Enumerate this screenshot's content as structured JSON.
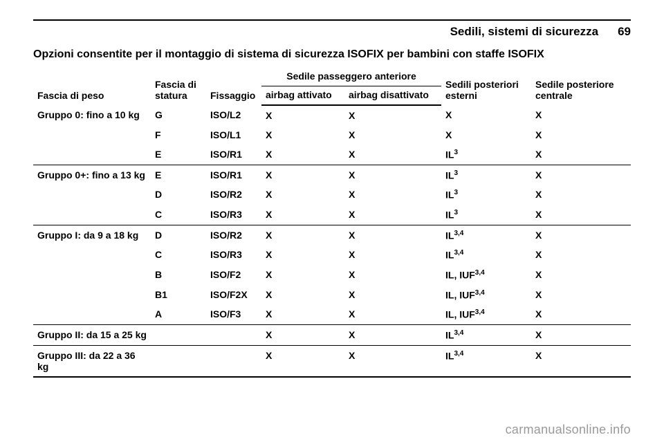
{
  "running_head": {
    "section": "Sedili, sistemi di sicurezza",
    "page": "69"
  },
  "title": "Opzioni consentite per il montaggio di sistema di sicurezza ISOFIX per bambini con staffe ISOFIX",
  "head": {
    "weight": "Fascia di peso",
    "size": "Fascia di statura",
    "fix": "Fissaggio",
    "front_span": "Sedile passeggero anteriore",
    "airbag_on": "airbag attivato",
    "airbag_off": "airbag disattivato",
    "rear_outer": "Sedili posteriori esterni",
    "rear_center": "Sedile posteriore centrale"
  },
  "groups": [
    {
      "label": "Gruppo 0: fino a 10 kg",
      "rows": [
        {
          "size": "G",
          "fix": "ISO/L2",
          "ab_on": "X",
          "ab_off": "X",
          "rear": "X",
          "rear_sup": "",
          "center": "X"
        },
        {
          "size": "F",
          "fix": "ISO/L1",
          "ab_on": "X",
          "ab_off": "X",
          "rear": "X",
          "rear_sup": "",
          "center": "X"
        },
        {
          "size": "E",
          "fix": "ISO/R1",
          "ab_on": "X",
          "ab_off": "X",
          "rear": "IL",
          "rear_sup": "3",
          "center": "X"
        }
      ]
    },
    {
      "label": "Gruppo 0+: fino a 13 kg",
      "rows": [
        {
          "size": "E",
          "fix": "ISO/R1",
          "ab_on": "X",
          "ab_off": "X",
          "rear": "IL",
          "rear_sup": "3",
          "center": "X"
        },
        {
          "size": "D",
          "fix": "ISO/R2",
          "ab_on": "X",
          "ab_off": "X",
          "rear": "IL",
          "rear_sup": "3",
          "center": "X"
        },
        {
          "size": "C",
          "fix": "ISO/R3",
          "ab_on": "X",
          "ab_off": "X",
          "rear": "IL",
          "rear_sup": "3",
          "center": "X"
        }
      ]
    },
    {
      "label": "Gruppo I: da 9 a 18 kg",
      "rows": [
        {
          "size": "D",
          "fix": "ISO/R2",
          "ab_on": "X",
          "ab_off": "X",
          "rear": "IL",
          "rear_sup": "3,4",
          "center": "X"
        },
        {
          "size": "C",
          "fix": "ISO/R3",
          "ab_on": "X",
          "ab_off": "X",
          "rear": "IL",
          "rear_sup": "3,4",
          "center": "X"
        },
        {
          "size": "B",
          "fix": "ISO/F2",
          "ab_on": "X",
          "ab_off": "X",
          "rear": "IL, IUF",
          "rear_sup": "3,4",
          "center": "X"
        },
        {
          "size": "B1",
          "fix": "ISO/F2X",
          "ab_on": "X",
          "ab_off": "X",
          "rear": "IL, IUF",
          "rear_sup": "3,4",
          "center": "X"
        },
        {
          "size": "A",
          "fix": "ISO/F3",
          "ab_on": "X",
          "ab_off": "X",
          "rear": "IL, IUF",
          "rear_sup": "3,4",
          "center": "X"
        }
      ]
    },
    {
      "label": "Gruppo II: da 15 a 25 kg",
      "rows": [
        {
          "size": "",
          "fix": "",
          "ab_on": "X",
          "ab_off": "X",
          "rear": "IL",
          "rear_sup": "3,4",
          "center": "X"
        }
      ]
    },
    {
      "label": "Gruppo III: da 22 a 36 kg",
      "rows": [
        {
          "size": "",
          "fix": "",
          "ab_on": "X",
          "ab_off": "X",
          "rear": "IL",
          "rear_sup": "3,4",
          "center": "X"
        }
      ]
    }
  ],
  "watermark": "carmanualsonline.info"
}
